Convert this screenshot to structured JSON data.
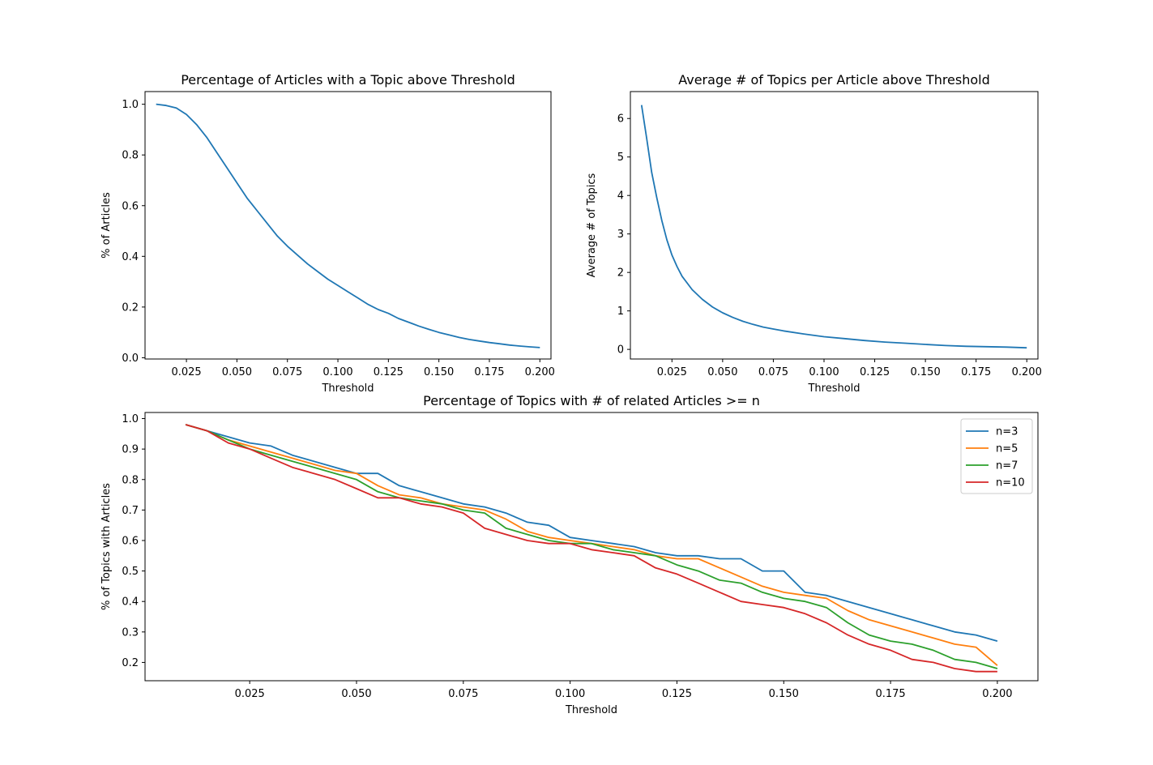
{
  "chart_data": [
    {
      "type": "line",
      "title": "Percentage of Articles with a Topic above Threshold",
      "xlabel": "Threshold",
      "ylabel": "% of Articles",
      "xlim": [
        0.0045,
        0.2055
      ],
      "ylim": [
        -0.005,
        1.05
      ],
      "xticks": [
        "0.025",
        "0.050",
        "0.075",
        "0.100",
        "0.125",
        "0.150",
        "0.175",
        "0.200"
      ],
      "yticks": [
        "0.0",
        "0.2",
        "0.4",
        "0.6",
        "0.8",
        "1.0"
      ],
      "color": "#1f77b4",
      "x": [
        0.01,
        0.015,
        0.02,
        0.025,
        0.03,
        0.035,
        0.04,
        0.045,
        0.05,
        0.055,
        0.06,
        0.065,
        0.07,
        0.075,
        0.08,
        0.085,
        0.09,
        0.095,
        0.1,
        0.105,
        0.11,
        0.115,
        0.12,
        0.125,
        0.13,
        0.135,
        0.14,
        0.145,
        0.15,
        0.155,
        0.16,
        0.165,
        0.17,
        0.175,
        0.18,
        0.185,
        0.19,
        0.195,
        0.2
      ],
      "y": [
        1.0,
        0.995,
        0.985,
        0.96,
        0.92,
        0.87,
        0.81,
        0.75,
        0.69,
        0.63,
        0.58,
        0.53,
        0.48,
        0.44,
        0.405,
        0.37,
        0.34,
        0.31,
        0.285,
        0.26,
        0.235,
        0.21,
        0.19,
        0.175,
        0.155,
        0.14,
        0.125,
        0.112,
        0.1,
        0.09,
        0.08,
        0.072,
        0.066,
        0.06,
        0.055,
        0.05,
        0.046,
        0.043,
        0.04
      ]
    },
    {
      "type": "line",
      "title": "Average # of Topics per Article above Threshold",
      "xlabel": "Threshold",
      "ylabel": "Average # of Topics",
      "xlim": [
        0.0045,
        0.2055
      ],
      "ylim": [
        -0.25,
        6.7
      ],
      "xticks": [
        "0.025",
        "0.050",
        "0.075",
        "0.100",
        "0.125",
        "0.150",
        "0.175",
        "0.200"
      ],
      "yticks": [
        "0",
        "1",
        "2",
        "3",
        "4",
        "5",
        "6"
      ],
      "color": "#1f77b4",
      "x": [
        0.01,
        0.0125,
        0.015,
        0.0175,
        0.02,
        0.0225,
        0.025,
        0.0275,
        0.03,
        0.035,
        0.04,
        0.045,
        0.05,
        0.055,
        0.06,
        0.065,
        0.07,
        0.075,
        0.08,
        0.09,
        0.1,
        0.11,
        0.12,
        0.13,
        0.14,
        0.15,
        0.16,
        0.17,
        0.18,
        0.19,
        0.2
      ],
      "y": [
        6.35,
        5.5,
        4.6,
        3.95,
        3.35,
        2.85,
        2.45,
        2.15,
        1.9,
        1.55,
        1.3,
        1.1,
        0.95,
        0.83,
        0.73,
        0.65,
        0.58,
        0.53,
        0.48,
        0.4,
        0.33,
        0.28,
        0.23,
        0.19,
        0.16,
        0.13,
        0.1,
        0.08,
        0.07,
        0.06,
        0.04
      ]
    },
    {
      "type": "line",
      "title": "Percentage of Topics with # of related Articles >= n",
      "xlabel": "Threshold",
      "ylabel": "% of Topics with Articles",
      "xlim": [
        0.0005,
        0.2095
      ],
      "ylim": [
        0.14,
        1.02
      ],
      "xticks": [
        "0.025",
        "0.050",
        "0.075",
        "0.100",
        "0.125",
        "0.150",
        "0.175",
        "0.200"
      ],
      "yticks": [
        "0.2",
        "0.3",
        "0.4",
        "0.5",
        "0.6",
        "0.7",
        "0.8",
        "0.9",
        "1.0"
      ],
      "legend_loc": "top-right",
      "series": [
        {
          "name": "n=3",
          "color": "#1f77b4",
          "x": [
            0.01,
            0.015,
            0.02,
            0.025,
            0.03,
            0.035,
            0.04,
            0.045,
            0.05,
            0.055,
            0.06,
            0.065,
            0.07,
            0.075,
            0.08,
            0.085,
            0.09,
            0.095,
            0.1,
            0.105,
            0.11,
            0.115,
            0.12,
            0.125,
            0.13,
            0.135,
            0.14,
            0.145,
            0.15,
            0.155,
            0.16,
            0.165,
            0.17,
            0.175,
            0.18,
            0.185,
            0.19,
            0.195,
            0.2
          ],
          "y": [
            0.98,
            0.96,
            0.94,
            0.92,
            0.91,
            0.88,
            0.86,
            0.84,
            0.82,
            0.82,
            0.78,
            0.76,
            0.74,
            0.72,
            0.71,
            0.69,
            0.66,
            0.65,
            0.61,
            0.6,
            0.59,
            0.58,
            0.56,
            0.55,
            0.55,
            0.54,
            0.54,
            0.5,
            0.5,
            0.43,
            0.42,
            0.4,
            0.38,
            0.36,
            0.34,
            0.32,
            0.3,
            0.29,
            0.27
          ]
        },
        {
          "name": "n=5",
          "color": "#ff7f0e",
          "x": [
            0.01,
            0.015,
            0.02,
            0.025,
            0.03,
            0.035,
            0.04,
            0.045,
            0.05,
            0.055,
            0.06,
            0.065,
            0.07,
            0.075,
            0.08,
            0.085,
            0.09,
            0.095,
            0.1,
            0.105,
            0.11,
            0.115,
            0.12,
            0.125,
            0.13,
            0.135,
            0.14,
            0.145,
            0.15,
            0.155,
            0.16,
            0.165,
            0.17,
            0.175,
            0.18,
            0.185,
            0.19,
            0.195,
            0.2
          ],
          "y": [
            0.98,
            0.96,
            0.93,
            0.91,
            0.89,
            0.87,
            0.85,
            0.83,
            0.82,
            0.78,
            0.75,
            0.74,
            0.72,
            0.71,
            0.7,
            0.67,
            0.63,
            0.61,
            0.6,
            0.59,
            0.58,
            0.57,
            0.55,
            0.54,
            0.54,
            0.51,
            0.48,
            0.45,
            0.43,
            0.42,
            0.41,
            0.37,
            0.34,
            0.32,
            0.3,
            0.28,
            0.26,
            0.25,
            0.19
          ]
        },
        {
          "name": "n=7",
          "color": "#2ca02c",
          "x": [
            0.01,
            0.015,
            0.02,
            0.025,
            0.03,
            0.035,
            0.04,
            0.045,
            0.05,
            0.055,
            0.06,
            0.065,
            0.07,
            0.075,
            0.08,
            0.085,
            0.09,
            0.095,
            0.1,
            0.105,
            0.11,
            0.115,
            0.12,
            0.125,
            0.13,
            0.135,
            0.14,
            0.145,
            0.15,
            0.155,
            0.16,
            0.165,
            0.17,
            0.175,
            0.18,
            0.185,
            0.19,
            0.195,
            0.2
          ],
          "y": [
            0.98,
            0.96,
            0.93,
            0.9,
            0.88,
            0.86,
            0.84,
            0.82,
            0.8,
            0.76,
            0.74,
            0.73,
            0.72,
            0.7,
            0.69,
            0.64,
            0.62,
            0.6,
            0.59,
            0.59,
            0.57,
            0.56,
            0.55,
            0.52,
            0.5,
            0.47,
            0.46,
            0.43,
            0.41,
            0.4,
            0.38,
            0.33,
            0.29,
            0.27,
            0.26,
            0.24,
            0.21,
            0.2,
            0.18
          ]
        },
        {
          "name": "n=10",
          "color": "#d62728",
          "x": [
            0.01,
            0.015,
            0.02,
            0.025,
            0.03,
            0.035,
            0.04,
            0.045,
            0.05,
            0.055,
            0.06,
            0.065,
            0.07,
            0.075,
            0.08,
            0.085,
            0.09,
            0.095,
            0.1,
            0.105,
            0.11,
            0.115,
            0.12,
            0.125,
            0.13,
            0.135,
            0.14,
            0.145,
            0.15,
            0.155,
            0.16,
            0.165,
            0.17,
            0.175,
            0.18,
            0.185,
            0.19,
            0.195,
            0.2
          ],
          "y": [
            0.98,
            0.96,
            0.92,
            0.9,
            0.87,
            0.84,
            0.82,
            0.8,
            0.77,
            0.74,
            0.74,
            0.72,
            0.71,
            0.69,
            0.64,
            0.62,
            0.6,
            0.59,
            0.59,
            0.57,
            0.56,
            0.55,
            0.51,
            0.49,
            0.46,
            0.43,
            0.4,
            0.39,
            0.38,
            0.36,
            0.33,
            0.29,
            0.26,
            0.24,
            0.21,
            0.2,
            0.18,
            0.17,
            0.17
          ]
        }
      ]
    }
  ]
}
